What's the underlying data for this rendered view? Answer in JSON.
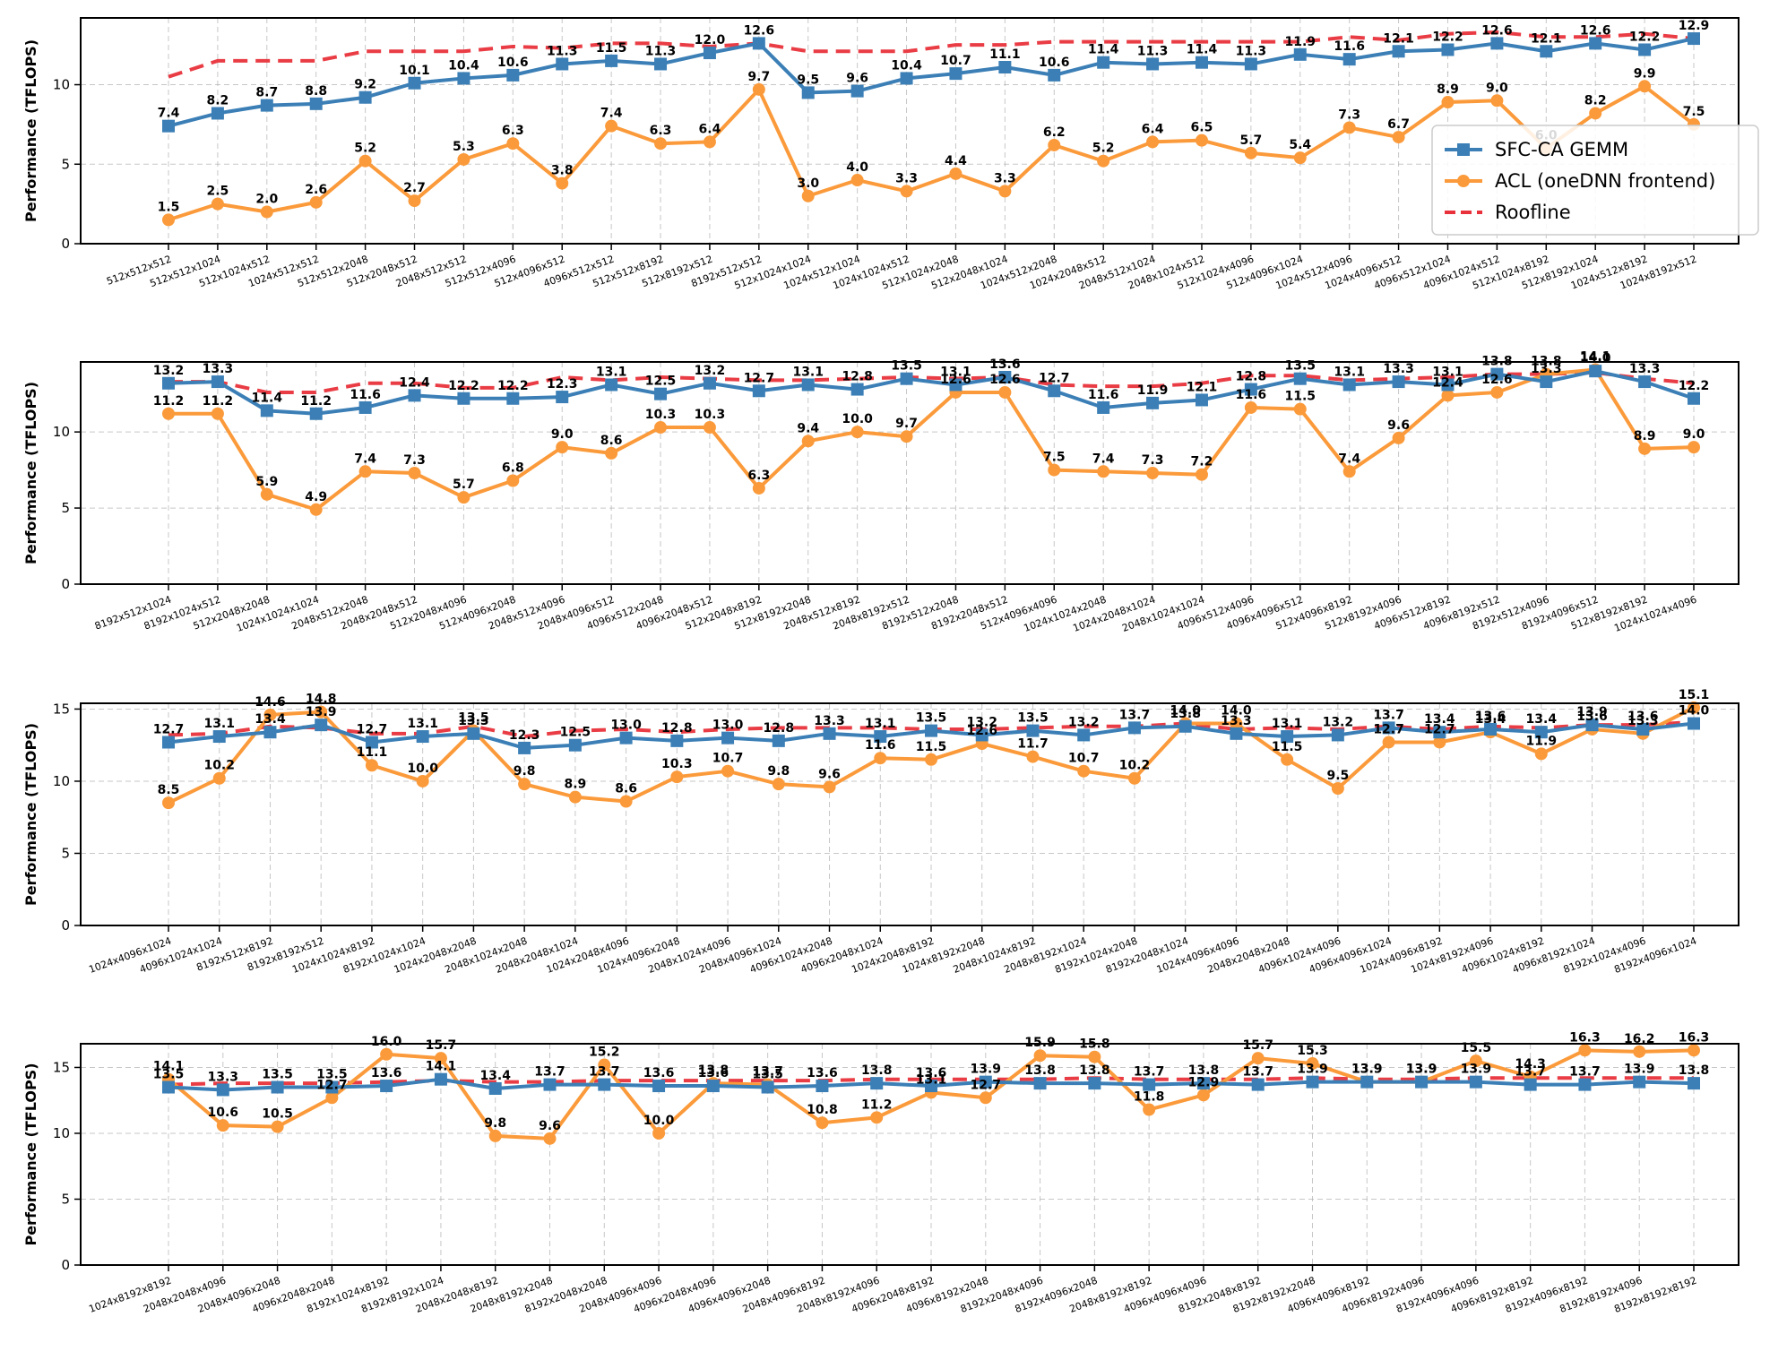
{
  "colors": {
    "sfc": "#3b7fb6",
    "acl": "#fb9a3a",
    "roofline": "#e8313a"
  },
  "legend": {
    "placement": "right",
    "entries": [
      {
        "key": "sfc",
        "label": "SFC-CA GEMM",
        "marker": "square"
      },
      {
        "key": "acl",
        "label": "ACL (oneDNN frontend)",
        "marker": "circle"
      },
      {
        "key": "roofline",
        "label": "Roofline",
        "marker": "dashed-line"
      }
    ]
  },
  "chart_data": [
    {
      "type": "line",
      "ylabel": "Performance (TFLOPS)",
      "ylim": [
        0,
        14.2
      ],
      "yticks": [
        0,
        5,
        10
      ],
      "grid": true,
      "legend": true,
      "categories": [
        "512x512x512",
        "512x512x1024",
        "512x1024x512",
        "1024x512x512",
        "512x512x2048",
        "512x2048x512",
        "2048x512x512",
        "512x512x4096",
        "512x4096x512",
        "4096x512x512",
        "512x512x8192",
        "512x8192x512",
        "8192x512x512",
        "512x1024x1024",
        "1024x512x1024",
        "1024x1024x512",
        "512x1024x2048",
        "512x2048x1024",
        "1024x512x2048",
        "1024x2048x512",
        "2048x512x1024",
        "2048x1024x512",
        "512x1024x4096",
        "512x4096x1024",
        "1024x512x4096",
        "1024x4096x512",
        "4096x512x1024",
        "4096x1024x512",
        "512x1024x8192",
        "512x8192x1024",
        "1024x512x8192",
        "1024x8192x512"
      ],
      "series": [
        {
          "key": "sfc",
          "name": "SFC-CA GEMM",
          "values": [
            7.4,
            8.2,
            8.7,
            8.8,
            9.2,
            10.1,
            10.4,
            10.6,
            11.3,
            11.5,
            11.3,
            12.0,
            12.6,
            9.5,
            9.6,
            10.4,
            10.7,
            11.1,
            10.6,
            11.4,
            11.3,
            11.4,
            11.3,
            11.9,
            11.6,
            12.1,
            12.2,
            12.6,
            12.1,
            12.6,
            12.2,
            12.9
          ]
        },
        {
          "key": "acl",
          "name": "ACL (oneDNN frontend)",
          "values": [
            1.5,
            2.5,
            2.0,
            2.6,
            5.2,
            2.7,
            5.3,
            6.3,
            3.8,
            7.4,
            6.3,
            6.4,
            9.7,
            3.0,
            4.0,
            3.3,
            4.4,
            3.3,
            6.2,
            5.2,
            6.4,
            6.5,
            5.7,
            5.4,
            7.3,
            6.7,
            8.9,
            9.0,
            6.0,
            8.2,
            9.9,
            7.5
          ]
        },
        {
          "key": "roofline",
          "name": "Roofline",
          "values": [
            10.5,
            11.5,
            11.5,
            11.5,
            12.1,
            12.1,
            12.1,
            12.4,
            12.3,
            12.6,
            12.6,
            12.4,
            12.6,
            12.1,
            12.1,
            12.1,
            12.5,
            12.5,
            12.7,
            12.7,
            12.7,
            12.7,
            12.7,
            12.7,
            13.0,
            12.8,
            13.2,
            13.3,
            13.0,
            13.0,
            13.2,
            12.9
          ]
        }
      ]
    },
    {
      "type": "line",
      "ylabel": "Performance (TFLOPS)",
      "ylim": [
        0,
        14.6
      ],
      "yticks": [
        0,
        5,
        10
      ],
      "grid": true,
      "legend": false,
      "categories": [
        "8192x512x1024",
        "8192x1024x512",
        "512x2048x2048",
        "1024x1024x1024",
        "2048x512x2048",
        "2048x2048x512",
        "512x2048x4096",
        "512x4096x2048",
        "2048x512x4096",
        "2048x4096x512",
        "4096x512x2048",
        "4096x2048x512",
        "512x2048x8192",
        "512x8192x2048",
        "2048x512x8192",
        "2048x8192x512",
        "8192x512x2048",
        "8192x2048x512",
        "512x4096x4096",
        "1024x1024x2048",
        "1024x2048x1024",
        "2048x1024x1024",
        "4096x512x4096",
        "4096x4096x512",
        "512x4096x8192",
        "512x8192x4096",
        "4096x512x8192",
        "4096x8192x512",
        "8192x512x4096",
        "8192x4096x512",
        "512x8192x8192",
        "1024x1024x4096"
      ],
      "series": [
        {
          "key": "sfc",
          "name": "SFC-CA GEMM",
          "values": [
            13.2,
            13.3,
            11.4,
            11.2,
            11.6,
            12.4,
            12.2,
            12.2,
            12.3,
            13.1,
            12.5,
            13.2,
            12.7,
            13.1,
            12.8,
            13.5,
            13.1,
            13.6,
            12.7,
            11.6,
            11.9,
            12.1,
            12.8,
            13.5,
            13.1,
            13.3,
            13.1,
            13.8,
            13.3,
            14.0,
            13.3,
            12.2
          ]
        },
        {
          "key": "acl",
          "name": "ACL (oneDNN frontend)",
          "values": [
            11.2,
            11.2,
            5.9,
            4.9,
            7.4,
            7.3,
            5.7,
            6.8,
            9.0,
            8.6,
            10.3,
            10.3,
            6.3,
            9.4,
            10.0,
            9.7,
            12.6,
            12.6,
            7.5,
            7.4,
            7.3,
            7.2,
            11.6,
            11.5,
            7.4,
            9.6,
            12.4,
            12.6,
            13.8,
            14.1,
            8.9,
            9.0
          ]
        },
        {
          "key": "roofline",
          "name": "Roofline",
          "values": [
            13.3,
            13.3,
            12.6,
            12.6,
            13.2,
            13.2,
            12.9,
            12.9,
            13.6,
            13.4,
            13.6,
            13.5,
            13.4,
            13.4,
            13.5,
            13.6,
            13.5,
            13.6,
            13.1,
            13.0,
            13.0,
            13.2,
            13.7,
            13.7,
            13.4,
            13.5,
            13.6,
            13.8,
            13.8,
            13.9,
            13.5,
            13.2
          ]
        }
      ]
    },
    {
      "type": "line",
      "ylabel": "Performance (TFLOPS)",
      "ylim": [
        0,
        15.4
      ],
      "yticks": [
        0,
        5,
        10,
        15
      ],
      "grid": true,
      "legend": false,
      "categories": [
        "1024x4096x1024",
        "4096x1024x1024",
        "8192x512x8192",
        "8192x8192x512",
        "1024x1024x8192",
        "8192x1024x1024",
        "1024x2048x2048",
        "2048x1024x2048",
        "2048x2048x1024",
        "1024x2048x4096",
        "1024x4096x2048",
        "2048x1024x4096",
        "2048x4096x1024",
        "4096x1024x2048",
        "4096x2048x1024",
        "1024x2048x8192",
        "1024x8192x2048",
        "2048x1024x8192",
        "2048x8192x1024",
        "8192x1024x2048",
        "8192x2048x1024",
        "1024x4096x4096",
        "2048x2048x2048",
        "4096x1024x4096",
        "4096x4096x1024",
        "1024x4096x8192",
        "1024x8192x4096",
        "4096x1024x8192",
        "4096x8192x1024",
        "8192x1024x4096",
        "8192x4096x1024"
      ],
      "series": [
        {
          "key": "sfc",
          "name": "SFC-CA GEMM",
          "values": [
            12.7,
            13.1,
            13.4,
            13.9,
            12.7,
            13.1,
            13.3,
            12.3,
            12.5,
            13.0,
            12.8,
            13.0,
            12.8,
            13.3,
            13.1,
            13.5,
            13.2,
            13.5,
            13.2,
            13.7,
            13.8,
            13.3,
            13.1,
            13.2,
            13.7,
            13.4,
            13.6,
            13.4,
            13.9,
            13.6,
            14.0
          ]
        },
        {
          "key": "acl",
          "name": "ACL (oneDNN frontend)",
          "values": [
            8.5,
            10.2,
            14.6,
            14.8,
            11.1,
            10.0,
            13.5,
            9.8,
            8.9,
            8.6,
            10.3,
            10.7,
            9.8,
            9.6,
            11.6,
            11.5,
            12.6,
            11.7,
            10.7,
            10.2,
            14.0,
            14.0,
            11.5,
            9.5,
            12.7,
            12.7,
            13.4,
            11.9,
            13.6,
            13.3,
            15.1
          ]
        },
        {
          "key": "roofline",
          "name": "Roofline",
          "values": [
            13.2,
            13.3,
            13.8,
            13.7,
            13.3,
            13.3,
            13.8,
            13.1,
            13.5,
            13.6,
            13.4,
            13.6,
            13.7,
            13.7,
            13.7,
            13.6,
            13.6,
            13.7,
            13.8,
            13.8,
            14.0,
            13.6,
            13.7,
            13.6,
            13.8,
            13.6,
            13.8,
            13.7,
            13.9,
            13.9,
            14.1
          ]
        }
      ]
    },
    {
      "type": "line",
      "ylabel": "Performance (TFLOPS)",
      "ylim": [
        0,
        16.8
      ],
      "yticks": [
        0,
        5,
        10,
        15
      ],
      "grid": true,
      "legend": false,
      "categories": [
        "1024x8192x8192",
        "2048x2048x4096",
        "2048x4096x2048",
        "4096x2048x2048",
        "8192x1024x8192",
        "8192x8192x1024",
        "2048x2048x8192",
        "2048x8192x2048",
        "8192x2048x2048",
        "2048x4096x4096",
        "4096x2048x4096",
        "4096x4096x2048",
        "2048x4096x8192",
        "2048x8192x4096",
        "4096x2048x8192",
        "4096x8192x2048",
        "8192x2048x4096",
        "8192x4096x2048",
        "2048x8192x8192",
        "4096x4096x4096",
        "8192x2048x8192",
        "8192x8192x2048",
        "4096x4096x8192",
        "4096x8192x4096",
        "8192x4096x4096",
        "4096x8192x8192",
        "8192x4096x8192",
        "8192x8192x4096",
        "8192x8192x8192"
      ],
      "series": [
        {
          "key": "sfc",
          "name": "SFC-CA GEMM",
          "values": [
            13.5,
            13.3,
            13.5,
            13.5,
            13.6,
            14.1,
            13.4,
            13.7,
            13.7,
            13.6,
            13.6,
            13.5,
            13.6,
            13.8,
            13.6,
            13.9,
            13.8,
            13.8,
            13.7,
            13.8,
            13.7,
            13.9,
            13.9,
            13.9,
            13.9,
            13.7,
            13.7,
            13.9,
            13.8
          ]
        },
        {
          "key": "acl",
          "name": "ACL (oneDNN frontend)",
          "values": [
            14.1,
            10.6,
            10.5,
            12.7,
            16.0,
            15.7,
            9.8,
            9.6,
            15.2,
            10.0,
            13.8,
            13.7,
            10.8,
            11.2,
            13.1,
            12.7,
            15.9,
            15.8,
            11.8,
            12.9,
            15.7,
            15.3,
            13.9,
            13.9,
            15.5,
            14.3,
            16.3,
            16.2,
            16.3
          ]
        },
        {
          "key": "roofline",
          "name": "Roofline",
          "values": [
            13.7,
            13.8,
            13.8,
            13.8,
            13.9,
            14.0,
            13.9,
            13.9,
            14.0,
            14.0,
            14.0,
            14.0,
            14.0,
            14.1,
            14.1,
            14.1,
            14.1,
            14.2,
            14.1,
            14.1,
            14.1,
            14.2,
            14.1,
            14.1,
            14.2,
            14.2,
            14.2,
            14.2,
            14.2
          ]
        }
      ]
    }
  ]
}
